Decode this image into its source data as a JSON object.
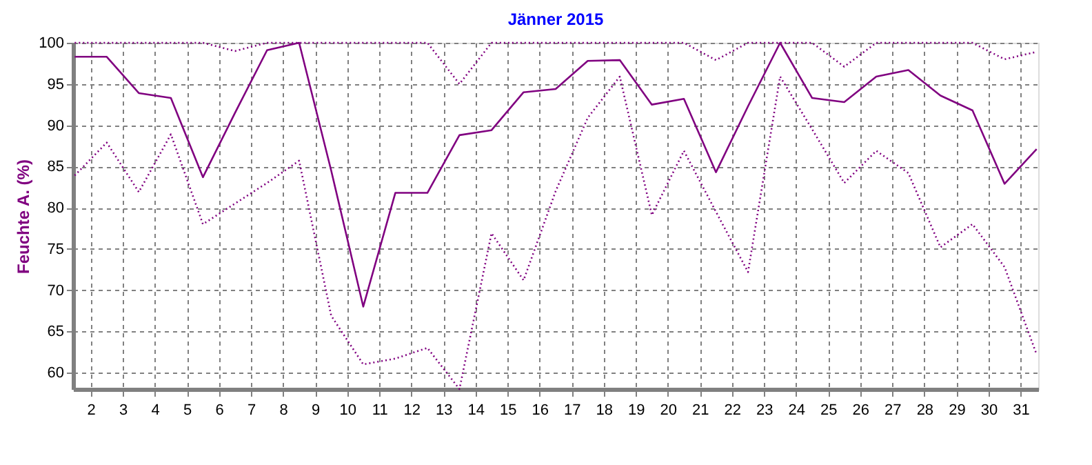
{
  "chart_data": {
    "type": "line",
    "title": "Jänner 2015",
    "ylabel": "Feuchte A. (%)",
    "x": [
      1.5,
      2.5,
      3.5,
      4.5,
      5.5,
      6.5,
      7.5,
      8.5,
      9.5,
      10.5,
      11.5,
      12.5,
      13.5,
      14.5,
      15.5,
      16.5,
      17.5,
      18.5,
      19.5,
      20.5,
      21.5,
      22.5,
      23.5,
      24.5,
      25.5,
      26.5,
      27.5,
      28.5,
      29.5,
      30.5,
      31.5
    ],
    "series": [
      {
        "color": "#800080",
        "line_style": "dotted",
        "values": [
          100,
          100,
          100,
          100,
          100,
          99,
          100,
          100,
          100,
          100,
          100,
          100,
          95,
          100,
          100,
          100,
          100,
          100,
          100,
          100,
          97.9,
          100,
          100,
          100,
          97.1,
          100,
          100,
          100,
          100,
          98,
          98.9
        ]
      },
      {
        "color": "#800080",
        "line_style": "solid",
        "values": [
          98.3,
          98.3,
          93.9,
          93.3,
          83.7,
          91.5,
          99.1,
          100,
          84.5,
          68,
          81.8,
          81.8,
          88.8,
          89.4,
          94,
          94.4,
          97.8,
          97.9,
          92.5,
          93.2,
          84.3,
          92.3,
          100,
          93.3,
          92.8,
          95.9,
          96.7,
          93.6,
          91.8,
          82.9,
          87.1
        ]
      },
      {
        "color": "#800080",
        "line_style": "dotted",
        "values": [
          83.9,
          87.9,
          81.9,
          88.9,
          78,
          80.5,
          83,
          85.7,
          66.9,
          61,
          61.7,
          63,
          58,
          76.9,
          71.2,
          82,
          90.9,
          95.9,
          79.1,
          86.9,
          79.5,
          72.2,
          95.9,
          89.5,
          83,
          86.9,
          84.2,
          75.2,
          78,
          72.8,
          62.2
        ]
      }
    ],
    "xlim": [
      1.45,
      31.55
    ],
    "xticks": [
      2,
      3,
      4,
      5,
      6,
      7,
      8,
      9,
      10,
      11,
      12,
      13,
      14,
      15,
      16,
      17,
      18,
      19,
      20,
      21,
      22,
      23,
      24,
      25,
      26,
      27,
      28,
      29,
      30,
      31
    ],
    "ylim": [
      58,
      100
    ],
    "yticks": [
      60,
      65,
      70,
      75,
      80,
      85,
      90,
      95,
      100
    ],
    "grid": true,
    "legend": false,
    "marker": "none"
  }
}
